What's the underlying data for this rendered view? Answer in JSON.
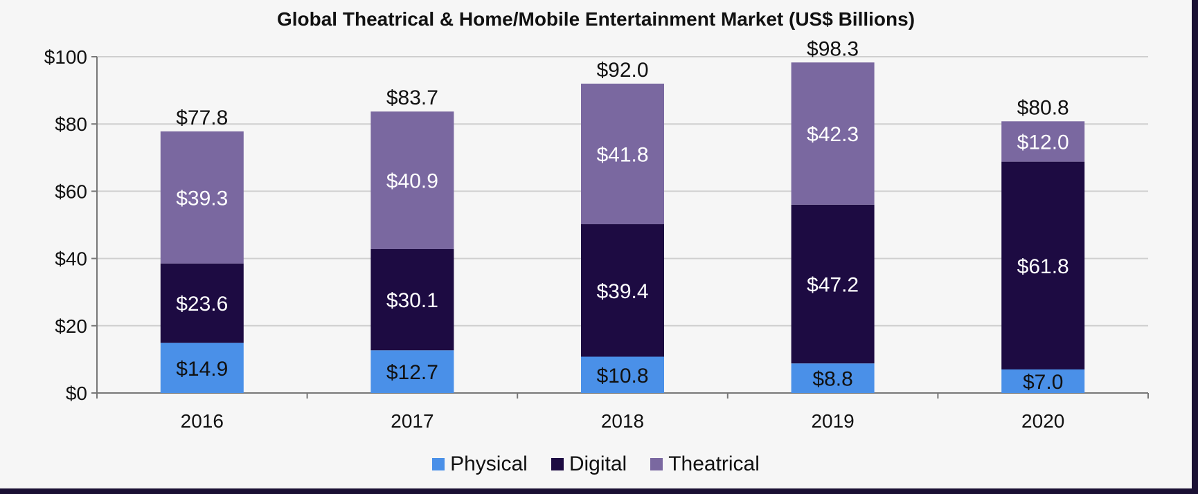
{
  "chart_data": {
    "type": "bar",
    "stacked": true,
    "title": "Global Theatrical & Home/Mobile Entertainment Market (US$ Billions)",
    "xlabel": "",
    "ylabel": "",
    "ylim": [
      0,
      100
    ],
    "y_ticks": [
      0,
      20,
      40,
      60,
      80,
      100
    ],
    "y_tick_labels": [
      "$0",
      "$20",
      "$40",
      "$60",
      "$80",
      "$100"
    ],
    "categories": [
      "2016",
      "2017",
      "2018",
      "2019",
      "2020"
    ],
    "series": [
      {
        "name": "Physical",
        "color": "#4a90e8",
        "label_color": "#111111",
        "values": [
          14.9,
          12.7,
          10.8,
          8.8,
          7.0
        ],
        "labels": [
          "$14.9",
          "$12.7",
          "$10.8",
          "$8.8",
          "$7.0"
        ]
      },
      {
        "name": "Digital",
        "color": "#1d0b42",
        "label_color": "#ffffff",
        "values": [
          23.6,
          30.1,
          39.4,
          47.2,
          61.8
        ],
        "labels": [
          "$23.6",
          "$30.1",
          "$39.4",
          "$47.2",
          "$61.8"
        ]
      },
      {
        "name": "Theatrical",
        "color": "#7a68a0",
        "label_color": "#ffffff",
        "values": [
          39.3,
          40.9,
          41.8,
          42.3,
          12.0
        ],
        "labels": [
          "$39.3",
          "$40.9",
          "$41.8",
          "$42.3",
          "$12.0"
        ]
      }
    ],
    "totals": [
      77.8,
      83.7,
      92.0,
      98.3,
      80.8
    ],
    "total_labels": [
      "$77.8",
      "$83.7",
      "$92.0",
      "$98.3",
      "$80.8"
    ],
    "grid": true,
    "legend_position": "bottom"
  }
}
